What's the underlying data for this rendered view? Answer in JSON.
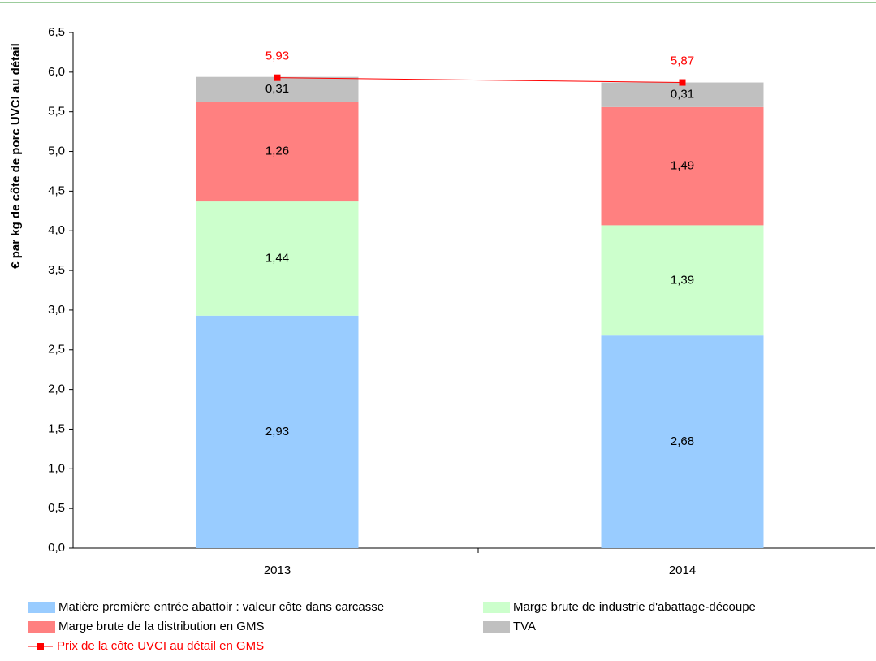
{
  "chart_data": {
    "type": "stacked-bar-line",
    "y_label": "€ par kg de côte de porc UVCI au détail",
    "categories": [
      "2013",
      "2014"
    ],
    "series": [
      {
        "name": "Matière première entrée abattoir : valeur côte dans carcasse",
        "color": "#99ccff",
        "values": [
          2.93,
          2.68
        ],
        "value_labels": [
          "2,93",
          "2,68"
        ]
      },
      {
        "name": "Marge brute de industrie d'abattage-découpe",
        "color": "#ccffcc",
        "values": [
          1.44,
          1.39
        ],
        "value_labels": [
          "1,44",
          "1,39"
        ]
      },
      {
        "name": "Marge brute de la distribution en GMS",
        "color": "#ff8080",
        "values": [
          1.26,
          1.49
        ],
        "value_labels": [
          "1,26",
          "1,49"
        ]
      },
      {
        "name": "TVA",
        "color": "#c0c0c0",
        "values": [
          0.31,
          0.31
        ],
        "value_labels": [
          "0,31",
          "0,31"
        ]
      },
      {
        "name": "Prix de la côte UVCI au détail en GMS",
        "color": "#ff0000",
        "type": "line",
        "values": [
          5.93,
          5.87
        ],
        "value_labels": [
          "5,93",
          "5,87"
        ]
      }
    ],
    "ylim": [
      0,
      6.5
    ],
    "yticks": [
      {
        "value": 0,
        "label": "0,0"
      },
      {
        "value": 0.5,
        "label": "0,5"
      },
      {
        "value": 1,
        "label": "1,0"
      },
      {
        "value": 1.5,
        "label": "1,5"
      },
      {
        "value": 2,
        "label": "2,0"
      },
      {
        "value": 2.5,
        "label": "2,5"
      },
      {
        "value": 3,
        "label": "3,0"
      },
      {
        "value": 3.5,
        "label": "3,5"
      },
      {
        "value": 4,
        "label": "4,0"
      },
      {
        "value": 4.5,
        "label": "4,5"
      },
      {
        "value": 5,
        "label": "5,0"
      },
      {
        "value": 5.5,
        "label": "5,5"
      },
      {
        "value": 6,
        "label": "6,0"
      },
      {
        "value": 6.5,
        "label": "6,5"
      }
    ]
  }
}
